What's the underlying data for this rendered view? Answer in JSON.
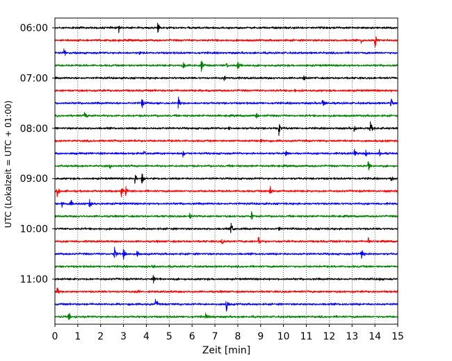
{
  "chart_data": {
    "type": "line",
    "title": "",
    "xlabel": "Zeit  [min]",
    "ylabel": "UTC (Lokalzeit = UTC + 01:00)",
    "xlim": [
      0,
      15
    ],
    "x_ticks": [
      0,
      1,
      2,
      3,
      4,
      5,
      6,
      7,
      8,
      9,
      10,
      11,
      12,
      13,
      14,
      15
    ],
    "x_tick_labels": [
      "0",
      "1",
      "2",
      "3",
      "4",
      "5",
      "6",
      "7",
      "8",
      "9",
      "10",
      "11",
      "12",
      "13",
      "14",
      "15"
    ],
    "y_tick_labels": [
      "06:00",
      "07:00",
      "08:00",
      "09:00",
      "10:00",
      "11:00"
    ],
    "y_tick_rows": [
      0,
      4,
      8,
      12,
      16,
      20
    ],
    "grid": "vertical dotted at each minute",
    "legend": "none",
    "colors_cycle": [
      "#000000",
      "#ff0000",
      "#0000ff",
      "#008000"
    ],
    "trace_count": 24,
    "trace_minutes": 15,
    "traces": [
      {
        "start": "06:00",
        "color": "#000000",
        "events": [
          [
            2.8,
            0.6
          ],
          [
            4.5,
            1.0
          ]
        ]
      },
      {
        "start": "06:15",
        "color": "#ff0000",
        "events": [
          [
            13.4,
            0.4
          ],
          [
            14.0,
            1.2
          ]
        ]
      },
      {
        "start": "06:30",
        "color": "#0000ff",
        "events": [
          [
            0.4,
            0.9
          ],
          [
            3.7,
            0.3
          ]
        ]
      },
      {
        "start": "06:45",
        "color": "#008000",
        "events": [
          [
            5.6,
            0.7
          ],
          [
            6.4,
            0.9
          ],
          [
            7.5,
            0.4
          ],
          [
            8.0,
            0.8
          ]
        ]
      },
      {
        "start": "07:00",
        "color": "#000000",
        "events": [
          [
            7.4,
            0.4
          ],
          [
            10.9,
            0.5
          ]
        ]
      },
      {
        "start": "07:15",
        "color": "#ff0000",
        "events": [
          [
            6.0,
            0.2
          ],
          [
            10.5,
            0.2
          ]
        ]
      },
      {
        "start": "07:30",
        "color": "#0000ff",
        "events": [
          [
            3.8,
            1.0
          ],
          [
            5.4,
            0.9
          ],
          [
            11.7,
            1.0
          ],
          [
            14.7,
            0.8
          ]
        ]
      },
      {
        "start": "07:45",
        "color": "#008000",
        "events": [
          [
            1.3,
            0.6
          ],
          [
            8.8,
            0.5
          ]
        ]
      },
      {
        "start": "08:00",
        "color": "#000000",
        "events": [
          [
            7.6,
            0.4
          ],
          [
            9.8,
            0.9
          ],
          [
            13.1,
            0.6
          ],
          [
            13.8,
            1.0
          ]
        ]
      },
      {
        "start": "08:15",
        "color": "#ff0000",
        "events": [
          [
            3.5,
            0.2
          ],
          [
            9.0,
            0.2
          ]
        ]
      },
      {
        "start": "08:30",
        "color": "#0000ff",
        "events": [
          [
            3.9,
            0.4
          ],
          [
            5.6,
            0.6
          ],
          [
            10.1,
            0.4
          ],
          [
            13.1,
            0.9
          ],
          [
            13.6,
            0.6
          ],
          [
            14.2,
            0.5
          ]
        ]
      },
      {
        "start": "08:45",
        "color": "#008000",
        "events": [
          [
            2.4,
            0.4
          ],
          [
            13.7,
            0.9
          ]
        ]
      },
      {
        "start": "09:00",
        "color": "#000000",
        "events": [
          [
            3.5,
            0.7
          ],
          [
            3.8,
            1.0
          ],
          [
            14.7,
            0.5
          ]
        ]
      },
      {
        "start": "09:15",
        "color": "#ff0000",
        "events": [
          [
            0.1,
            1.0
          ],
          [
            2.9,
            0.9
          ],
          [
            3.1,
            0.8
          ],
          [
            9.4,
            0.9
          ]
        ]
      },
      {
        "start": "09:30",
        "color": "#0000ff",
        "events": [
          [
            0.3,
            0.6
          ],
          [
            0.7,
            0.8
          ],
          [
            1.5,
            0.8
          ]
        ]
      },
      {
        "start": "09:45",
        "color": "#008000",
        "events": [
          [
            5.9,
            0.5
          ],
          [
            8.6,
            0.6
          ]
        ]
      },
      {
        "start": "10:00",
        "color": "#000000",
        "events": [
          [
            7.7,
            1.0
          ],
          [
            9.8,
            0.3
          ]
        ]
      },
      {
        "start": "10:15",
        "color": "#ff0000",
        "events": [
          [
            7.3,
            0.8
          ],
          [
            8.9,
            0.8
          ],
          [
            13.7,
            0.8
          ]
        ]
      },
      {
        "start": "10:30",
        "color": "#0000ff",
        "events": [
          [
            2.6,
            1.0
          ],
          [
            3.0,
            0.9
          ],
          [
            3.6,
            0.7
          ],
          [
            13.4,
            0.9
          ]
        ]
      },
      {
        "start": "10:45",
        "color": "#008000",
        "events": [
          [
            4.3,
            0.4
          ]
        ]
      },
      {
        "start": "11:00",
        "color": "#000000",
        "events": [
          [
            4.3,
            0.6
          ],
          [
            14.2,
            0.3
          ]
        ]
      },
      {
        "start": "11:15",
        "color": "#ff0000",
        "events": [
          [
            0.1,
            0.7
          ],
          [
            3.6,
            0.6
          ]
        ]
      },
      {
        "start": "11:30",
        "color": "#0000ff",
        "events": [
          [
            4.4,
            1.0
          ],
          [
            7.5,
            1.0
          ]
        ]
      },
      {
        "start": "11:45",
        "color": "#008000",
        "events": [
          [
            0.6,
            0.7
          ],
          [
            6.6,
            0.7
          ]
        ]
      }
    ]
  }
}
